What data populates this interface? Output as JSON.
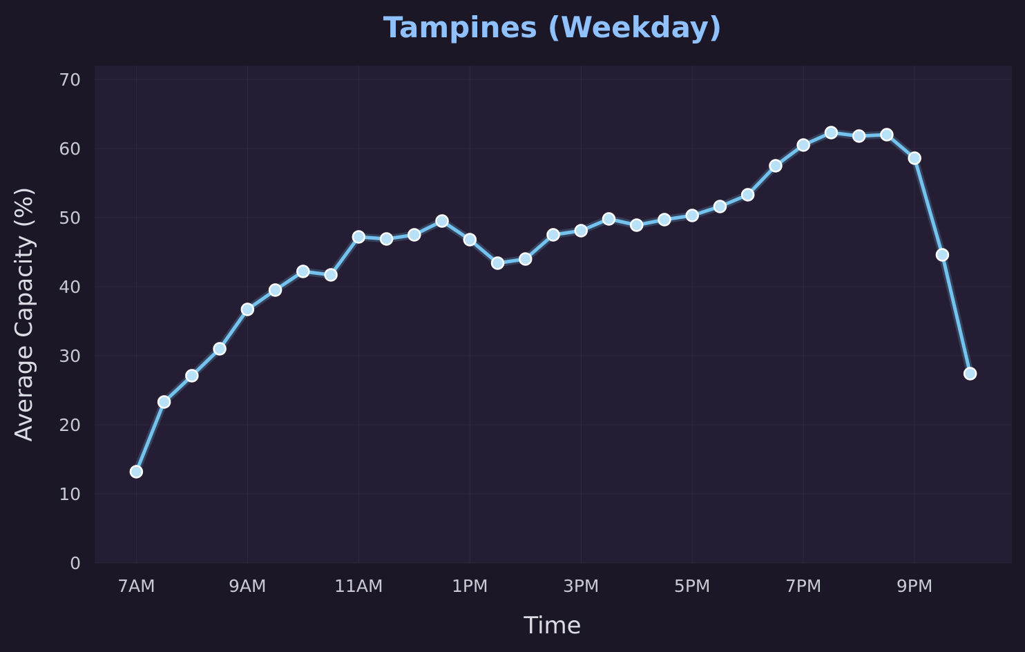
{
  "chart_data": {
    "type": "line",
    "title": "Tampines (Weekday)",
    "xlabel": "Time",
    "ylabel": "Average Capacity (%)",
    "x": [
      7,
      7.5,
      8,
      8.5,
      9,
      9.5,
      10,
      10.5,
      11,
      11.5,
      12,
      12.5,
      13,
      13.5,
      14,
      14.5,
      15,
      15.5,
      16,
      16.5,
      17,
      17.5,
      18,
      18.5,
      19,
      19.5,
      20,
      20.5,
      21,
      21.5,
      22
    ],
    "x_tick_values": [
      7,
      9,
      11,
      13,
      15,
      17,
      19,
      21
    ],
    "x_tick_labels": [
      "7AM",
      "9AM",
      "11AM",
      "1PM",
      "3PM",
      "5PM",
      "7PM",
      "9PM"
    ],
    "xlim": [
      6.25,
      22.75
    ],
    "ylim": [
      0,
      72
    ],
    "y_ticks": [
      0,
      10,
      20,
      30,
      40,
      50,
      60,
      70
    ],
    "grid": true,
    "series": [
      {
        "values": [
          13.2,
          23.3,
          27.1,
          31.0,
          36.7,
          39.5,
          42.2,
          41.7,
          47.2,
          46.9,
          47.5,
          49.5,
          46.8,
          43.4,
          44.0,
          47.5,
          48.1,
          49.8,
          48.9,
          49.7,
          50.3,
          51.6,
          53.3,
          57.5,
          60.5,
          62.3,
          61.8,
          62.0,
          58.6,
          44.6,
          27.4
        ]
      }
    ],
    "colors": {
      "background": "#1b1727",
      "plot_background": "#241d33",
      "line": "#74c3ee",
      "marker_fill": "#b8e1f7",
      "marker_edge": "#ffffff",
      "title": "#8fc1ff",
      "text": "#dcdce4"
    }
  }
}
